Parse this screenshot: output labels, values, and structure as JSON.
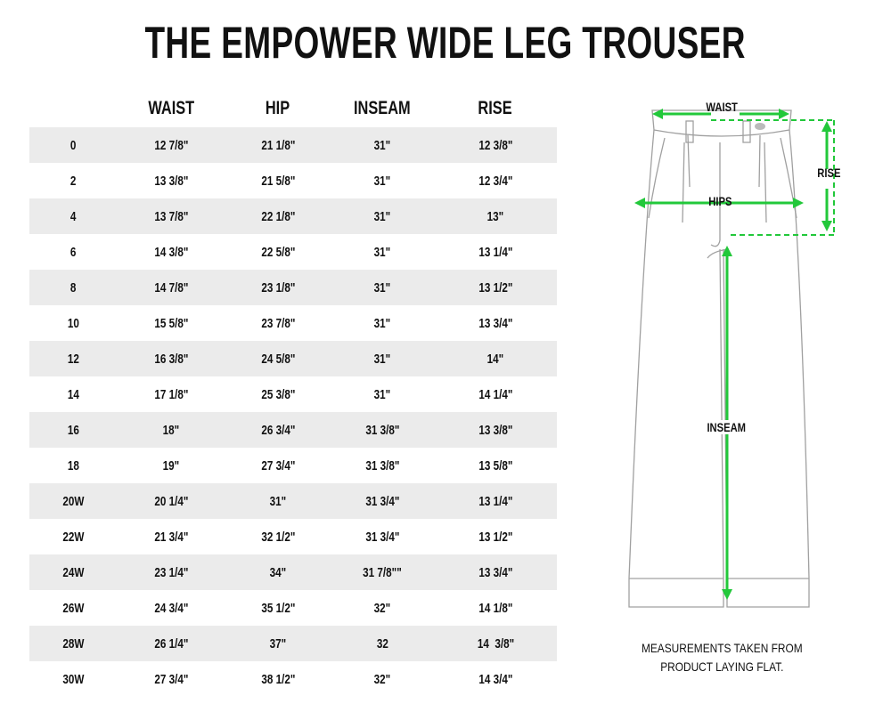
{
  "title": "THE EMPOWER WIDE LEG TROUSER",
  "table": {
    "headers": [
      "",
      "WAIST",
      "HIP",
      "INSEAM",
      "RISE"
    ],
    "rows": [
      [
        "0",
        "12 7/8\"",
        "21 1/8\"",
        "31\"",
        "12 3/8\""
      ],
      [
        "2",
        "13 3/8\"",
        "21 5/8\"",
        "31\"",
        "12 3/4\""
      ],
      [
        "4",
        "13 7/8\"",
        "22 1/8\"",
        "31\"",
        "13\""
      ],
      [
        "6",
        "14 3/8\"",
        "22 5/8\"",
        "31\"",
        "13 1/4\""
      ],
      [
        "8",
        "14 7/8\"",
        "23 1/8\"",
        "31\"",
        "13 1/2\""
      ],
      [
        "10",
        "15 5/8\"",
        "23 7/8\"",
        "31\"",
        "13 3/4\""
      ],
      [
        "12",
        "16 3/8\"",
        "24 5/8\"",
        "31\"",
        "14\""
      ],
      [
        "14",
        "17 1/8\"",
        "25 3/8\"",
        "31\"",
        "14 1/4\""
      ],
      [
        "16",
        "18\"",
        "26 3/4\"",
        "31 3/8\"",
        "13 3/8\""
      ],
      [
        "18",
        "19\"",
        "27 3/4\"",
        "31 3/8\"",
        "13 5/8\""
      ],
      [
        "20W",
        "20 1/4\"",
        "31\"",
        "31 3/4\"",
        "13 1/4\""
      ],
      [
        "22W",
        "21 3/4\"",
        "32 1/2\"",
        "31 3/4\"",
        "13 1/2\""
      ],
      [
        "24W",
        "23 1/4\"",
        "34\"",
        "31 7/8\"\"",
        "13 3/4\""
      ],
      [
        "26W",
        "24 3/4\"",
        "35 1/2\"",
        "32\"",
        "14 1/8\""
      ],
      [
        "28W",
        "26 1/4\"",
        "37\"",
        "32",
        "14  3/8\""
      ],
      [
        "30W",
        "27 3/4\"",
        "38 1/2\"",
        "32\"",
        "14 3/4\""
      ]
    ]
  },
  "diagram": {
    "labels": {
      "waist": "WAIST",
      "hips": "HIPS",
      "rise": "RISE",
      "inseam": "INSEAM"
    },
    "arrow_color": "#22c83a",
    "outline_color": "#9a9a9a"
  },
  "note": [
    "MEASUREMENTS TAKEN FROM",
    "PRODUCT LAYING FLAT."
  ],
  "colors": {
    "stripe": "#ebebeb",
    "text": "#111111"
  }
}
